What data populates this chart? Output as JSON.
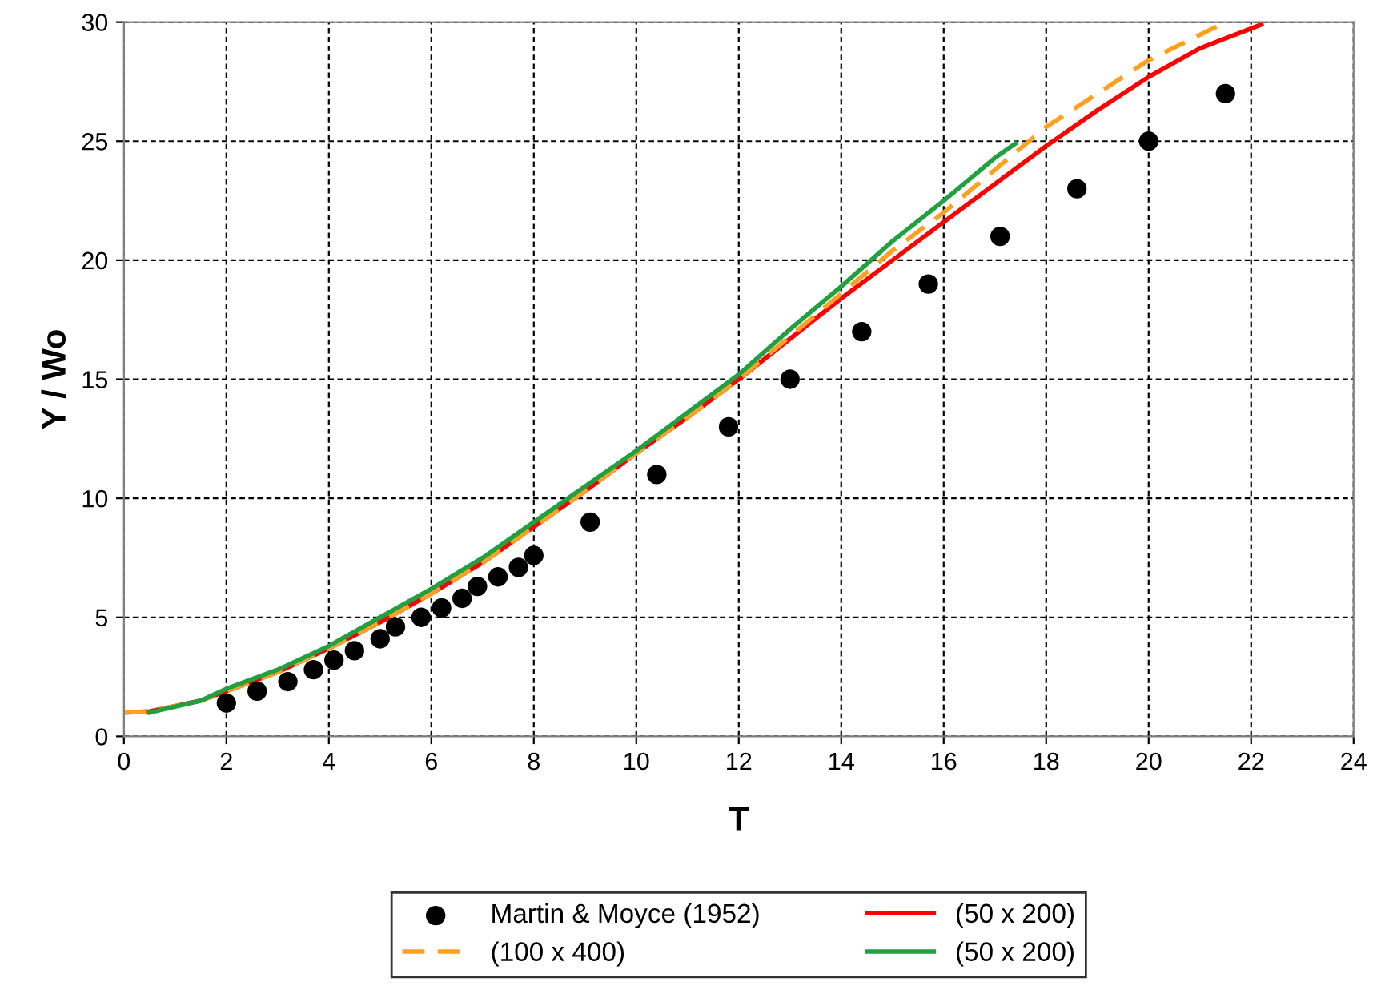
{
  "chart_data": {
    "type": "line",
    "xlabel": "T",
    "ylabel": "Y / Wo",
    "xlim": [
      0,
      24
    ],
    "xticks": [
      0,
      2,
      4,
      6,
      8,
      10,
      12,
      14,
      16,
      18,
      20,
      22,
      24
    ],
    "ylim": [
      0,
      30
    ],
    "yticks": [
      0,
      5,
      10,
      15,
      20,
      25,
      30
    ],
    "grid": true,
    "legend": "bottom",
    "series": [
      {
        "name": "Martin & Moyce (1952)",
        "type": "scatter",
        "marker": "circle",
        "color": "#000000",
        "x": [
          2.0,
          2.6,
          3.2,
          3.7,
          4.1,
          4.5,
          5.0,
          5.3,
          5.8,
          6.2,
          6.6,
          6.9,
          7.3,
          7.7,
          8.0,
          9.1,
          10.4,
          11.8,
          13.0,
          14.4,
          15.7,
          17.1,
          18.6,
          20.0,
          21.5
        ],
        "values": [
          1.4,
          1.9,
          2.3,
          2.8,
          3.2,
          3.6,
          4.1,
          4.6,
          5.0,
          5.4,
          5.8,
          6.3,
          6.7,
          7.1,
          7.6,
          9.0,
          11.0,
          13.0,
          15.0,
          17.0,
          19.0,
          21.0,
          23.0,
          25.0,
          27.0
        ]
      },
      {
        "name": "(50 x 200)",
        "line_style": "solid",
        "color": "#ff0000",
        "x": [
          0,
          0.5,
          1.5,
          2,
          3,
          4,
          5,
          6,
          7,
          8,
          9,
          10,
          11,
          12,
          13,
          14,
          15,
          16,
          17,
          18,
          19,
          20,
          21,
          22.2
        ],
        "values": [
          1.0,
          1.05,
          1.5,
          1.9,
          2.7,
          3.7,
          4.8,
          6.0,
          7.3,
          8.8,
          10.3,
          11.9,
          13.4,
          15.0,
          16.7,
          18.4,
          20.0,
          21.6,
          23.2,
          24.8,
          26.3,
          27.7,
          28.9,
          29.9
        ]
      },
      {
        "name": "(100 x 400)",
        "line_style": "dashed",
        "color": "#ffa020",
        "x": [
          0,
          0.5,
          1.5,
          2,
          3,
          4,
          5,
          6,
          7,
          8,
          9,
          10,
          11,
          12,
          13,
          14,
          15,
          16,
          17,
          18,
          19,
          20,
          21.5
        ],
        "values": [
          1.0,
          1.05,
          1.5,
          1.9,
          2.7,
          3.7,
          4.8,
          6.0,
          7.3,
          8.8,
          10.3,
          11.9,
          13.4,
          15.0,
          16.8,
          18.6,
          20.4,
          22.0,
          23.8,
          25.6,
          27.0,
          28.4,
          30.0
        ]
      },
      {
        "name": "(50 x 200)",
        "line_style": "solid",
        "color": "#20a040",
        "x": [
          0.5,
          1.5,
          2,
          3,
          4,
          5,
          6,
          7,
          8,
          9,
          10,
          11,
          12,
          13,
          14,
          15,
          16,
          17,
          17.4
        ],
        "values": [
          1.0,
          1.5,
          2.0,
          2.8,
          3.8,
          5.0,
          6.2,
          7.5,
          9.0,
          10.5,
          12.0,
          13.6,
          15.2,
          17.1,
          18.9,
          20.8,
          22.5,
          24.3,
          24.9
        ]
      }
    ]
  }
}
